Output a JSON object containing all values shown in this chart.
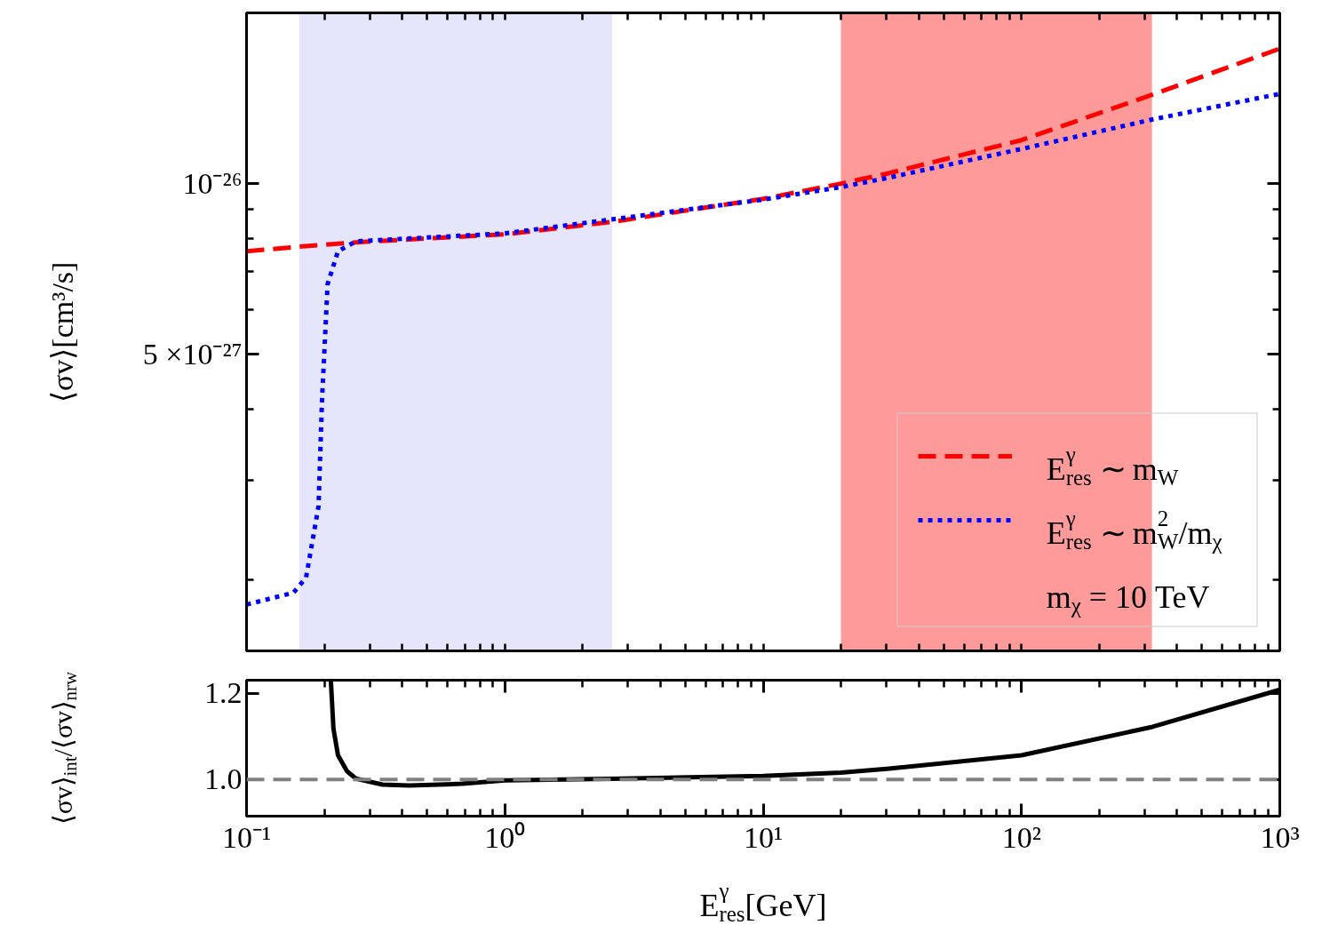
{
  "chart_data": [
    {
      "type": "line",
      "ylabel": "⟨σv⟩[cm³/s]",
      "log": "xy",
      "xlim": [
        0.1,
        1000
      ],
      "ylim": [
        1.5e-27,
        2e-26
      ],
      "xticks": [
        {
          "value": 0.1,
          "label": null
        },
        {
          "value": 0.2,
          "label": null
        },
        {
          "value": 0.3,
          "label": null
        },
        {
          "value": 0.4,
          "label": null
        },
        {
          "value": 0.5,
          "label": null
        },
        {
          "value": 0.6,
          "label": null
        },
        {
          "value": 0.7,
          "label": null
        },
        {
          "value": 0.8,
          "label": null
        },
        {
          "value": 0.9,
          "label": null
        },
        {
          "value": 1,
          "label": null
        },
        {
          "value": 2,
          "label": null
        },
        {
          "value": 3,
          "label": null
        },
        {
          "value": 4,
          "label": null
        },
        {
          "value": 5,
          "label": null
        },
        {
          "value": 6,
          "label": null
        },
        {
          "value": 7,
          "label": null
        },
        {
          "value": 8,
          "label": null
        },
        {
          "value": 9,
          "label": null
        },
        {
          "value": 10,
          "label": null
        },
        {
          "value": 20,
          "label": null
        },
        {
          "value": 30,
          "label": null
        },
        {
          "value": 40,
          "label": null
        },
        {
          "value": 50,
          "label": null
        },
        {
          "value": 60,
          "label": null
        },
        {
          "value": 70,
          "label": null
        },
        {
          "value": 80,
          "label": null
        },
        {
          "value": 90,
          "label": null
        },
        {
          "value": 100,
          "label": null
        },
        {
          "value": 200,
          "label": null
        },
        {
          "value": 300,
          "label": null
        },
        {
          "value": 400,
          "label": null
        },
        {
          "value": 500,
          "label": null
        },
        {
          "value": 600,
          "label": null
        },
        {
          "value": 700,
          "label": null
        },
        {
          "value": 800,
          "label": null
        },
        {
          "value": 900,
          "label": null
        },
        {
          "value": 1000,
          "label": null
        }
      ],
      "yticks": [
        {
          "value": 2e-27,
          "label": null
        },
        {
          "value": 3e-27,
          "label": null
        },
        {
          "value": 4e-27,
          "label": null
        },
        {
          "value": 5e-27,
          "label": "5 ×10⁻²⁷"
        },
        {
          "value": 6e-27,
          "label": null
        },
        {
          "value": 7e-27,
          "label": null
        },
        {
          "value": 8e-27,
          "label": null
        },
        {
          "value": 9e-27,
          "label": null
        },
        {
          "value": 1e-26,
          "label": "10⁻²⁶"
        }
      ],
      "tick_labels": "y",
      "legend": "bottom right",
      "annotations": [
        "m$_{χ}$ = 10 TeV"
      ],
      "bands": [
        {
          "axis": "x",
          "from": 0.16,
          "to": 2.6,
          "color": "#e5e5fb"
        },
        {
          "axis": "x",
          "from": 20,
          "to": 320,
          "color": "#ff9a9a"
        }
      ],
      "series": [
        {
          "name": "E$^{γ}$$_{res}$ ∼ m$_{W}$",
          "color": "#ff0000",
          "line_style": "dashed",
          "x": [
            0.1,
            0.16,
            0.265,
            1,
            2.6,
            10,
            20,
            30.8,
            100,
            320,
            1000
          ],
          "values": [
            7.6e-27,
            7.74e-27,
            7.88e-27,
            8.14e-27,
            8.56e-27,
            9.4e-27,
            1e-26,
            1.044e-26,
            1.193e-26,
            1.434e-26,
            1.73e-26
          ]
        },
        {
          "name": "E$^{γ}$$_{res}$ ∼ m$^{2}$$_{W}$/m$_{χ}$",
          "color": "#0000ff",
          "line_style": "dotted",
          "x": [
            0.1,
            0.152,
            0.17,
            0.19,
            0.196,
            0.206,
            0.226,
            0.265,
            1,
            10,
            20,
            30.8,
            100,
            320,
            1000
          ],
          "values": [
            1.81e-27,
            1.9e-27,
            2.02e-27,
            2.7e-27,
            4.16e-27,
            6.65e-27,
            7.6e-27,
            7.91e-27,
            8.17e-27,
            9.37e-27,
            9.86e-27,
            1.025e-26,
            1.151e-26,
            1.297e-26,
            1.44e-26
          ]
        }
      ]
    },
    {
      "type": "line",
      "xlabel": "E$^{γ}$$_{res}$[GeV]",
      "ylabel": "⟨σv⟩$_{int}$/⟨σv⟩$_{nrw}$",
      "log": "x",
      "xlim": [
        0.1,
        1000
      ],
      "ylim": [
        0.915,
        1.23
      ],
      "xticks": [
        {
          "value": 0.1,
          "label": "10⁻¹"
        },
        {
          "value": 0.2,
          "label": null
        },
        {
          "value": 0.3,
          "label": null
        },
        {
          "value": 0.4,
          "label": null
        },
        {
          "value": 0.5,
          "label": null
        },
        {
          "value": 0.6,
          "label": null
        },
        {
          "value": 0.7,
          "label": null
        },
        {
          "value": 0.8,
          "label": null
        },
        {
          "value": 0.9,
          "label": null
        },
        {
          "value": 1,
          "label": "10⁰"
        },
        {
          "value": 2,
          "label": null
        },
        {
          "value": 3,
          "label": null
        },
        {
          "value": 4,
          "label": null
        },
        {
          "value": 5,
          "label": null
        },
        {
          "value": 6,
          "label": null
        },
        {
          "value": 7,
          "label": null
        },
        {
          "value": 8,
          "label": null
        },
        {
          "value": 9,
          "label": null
        },
        {
          "value": 10,
          "label": "10¹"
        },
        {
          "value": 20,
          "label": null
        },
        {
          "value": 30,
          "label": null
        },
        {
          "value": 40,
          "label": null
        },
        {
          "value": 50,
          "label": null
        },
        {
          "value": 60,
          "label": null
        },
        {
          "value": 70,
          "label": null
        },
        {
          "value": 80,
          "label": null
        },
        {
          "value": 90,
          "label": null
        },
        {
          "value": 100,
          "label": "10²"
        },
        {
          "value": 200,
          "label": null
        },
        {
          "value": 300,
          "label": null
        },
        {
          "value": 400,
          "label": null
        },
        {
          "value": 500,
          "label": null
        },
        {
          "value": 600,
          "label": null
        },
        {
          "value": 700,
          "label": null
        },
        {
          "value": 800,
          "label": null
        },
        {
          "value": 900,
          "label": null
        },
        {
          "value": 1000,
          "label": "10³"
        }
      ],
      "yticks": [
        {
          "value": 1.0,
          "label": "1.0"
        },
        {
          "value": 1.2,
          "label": "1.2"
        }
      ],
      "ref_lines": [
        {
          "axis": "y",
          "value": 1.0,
          "color": "#808080",
          "line_style": "dashed"
        }
      ],
      "series": [
        {
          "color": "#000000",
          "line_style": "solid",
          "x": [
            0.212,
            0.217,
            0.226,
            0.245,
            0.265,
            0.336,
            0.426,
            0.684,
            1,
            2.84,
            10,
            20,
            30.8,
            100,
            322,
            1000
          ],
          "values": [
            1.23,
            1.1175,
            1.056,
            1.019,
            1.002,
            0.988,
            0.986,
            0.99,
            0.998,
            1.002,
            1.008,
            1.016,
            1.025,
            1.056,
            1.122,
            1.208
          ]
        }
      ]
    }
  ]
}
